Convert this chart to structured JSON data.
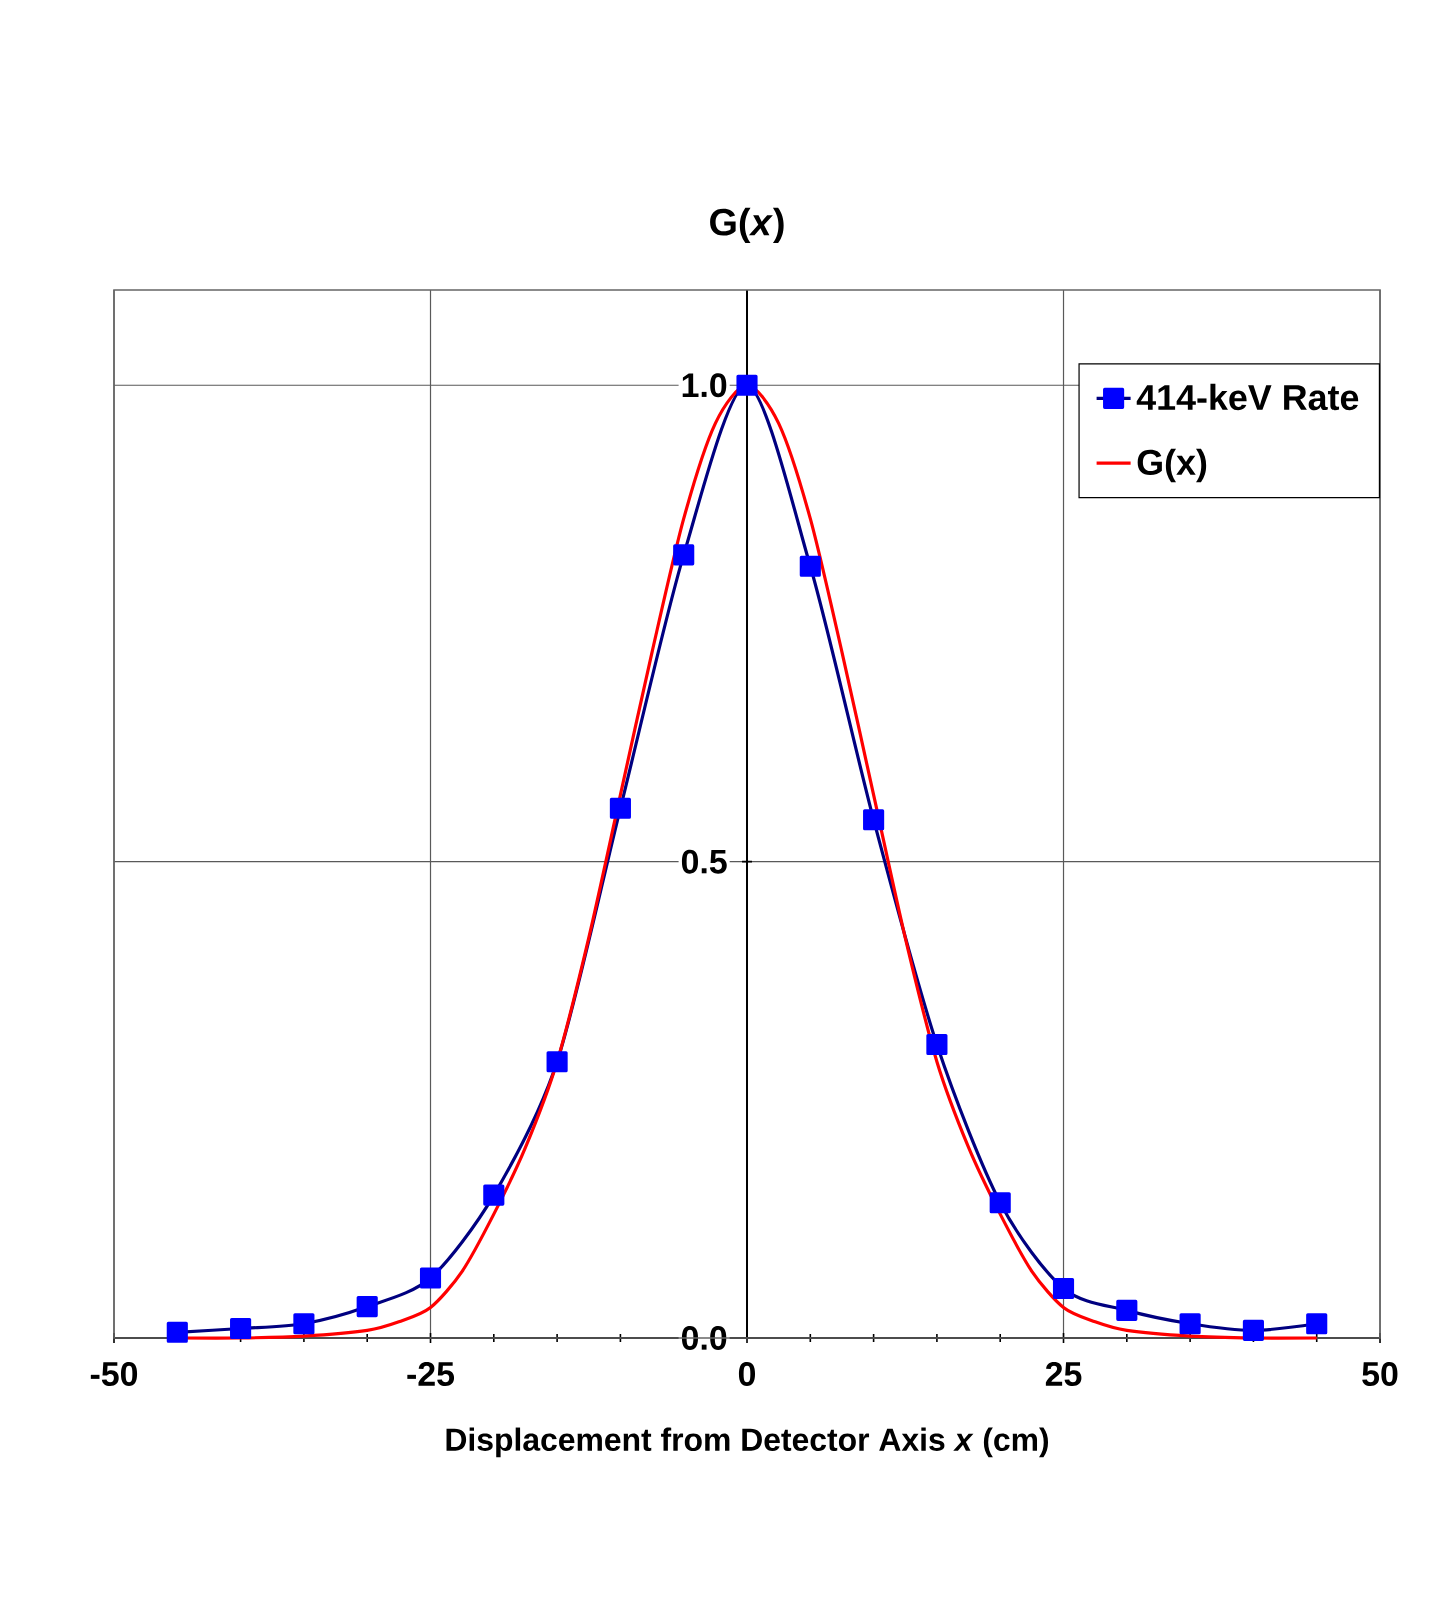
{
  "chart_data": {
    "type": "line",
    "title": "G(*x*)",
    "xlabel": "Displacement from Detector Axis *x*  (cm)",
    "xlim": [
      -50,
      50
    ],
    "xticks": [
      -50,
      -25,
      0,
      25,
      50
    ],
    "ylim": [
      0,
      1.1
    ],
    "yticks": [
      {
        "value": 0,
        "label": "0.0"
      },
      {
        "value": 0.5,
        "label": "0.5"
      },
      {
        "value": 1,
        "label": "1.0"
      }
    ],
    "grid": true,
    "legend": "top right",
    "series": [
      {
        "name": "414-keV Rate",
        "color": "#000080",
        "marker": "square",
        "x": [
          -45,
          -40,
          -35,
          -30,
          -25,
          -20,
          -15,
          -10,
          -5,
          0,
          5,
          10,
          15,
          20,
          25,
          30,
          35,
          40,
          45
        ],
        "values": [
          0.006,
          0.01,
          0.015,
          0.033,
          0.063,
          0.15,
          0.29,
          0.556,
          0.822,
          1.0,
          0.81,
          0.544,
          0.308,
          0.142,
          0.052,
          0.029,
          0.015,
          0.008,
          0.015
        ]
      },
      {
        "name": "G(x)",
        "color": "#ff0000",
        "marker": "none",
        "x": [
          -45,
          -40,
          -35,
          -30,
          -27.5,
          -25,
          -22.5,
          -20,
          -17.5,
          -15,
          -12.5,
          -10,
          -7.5,
          -5,
          -2.5,
          0,
          2.5,
          5,
          7.5,
          10,
          12.5,
          15,
          17.5,
          20,
          22.5,
          25,
          27.5,
          30,
          35,
          40,
          45
        ],
        "values": [
          0,
          0,
          0.002,
          0.008,
          0.017,
          0.032,
          0.07,
          0.13,
          0.2,
          0.29,
          0.42,
          0.57,
          0.72,
          0.86,
          0.96,
          1.0,
          0.96,
          0.86,
          0.72,
          0.57,
          0.42,
          0.29,
          0.2,
          0.13,
          0.07,
          0.032,
          0.017,
          0.008,
          0.002,
          0,
          0
        ]
      }
    ]
  }
}
